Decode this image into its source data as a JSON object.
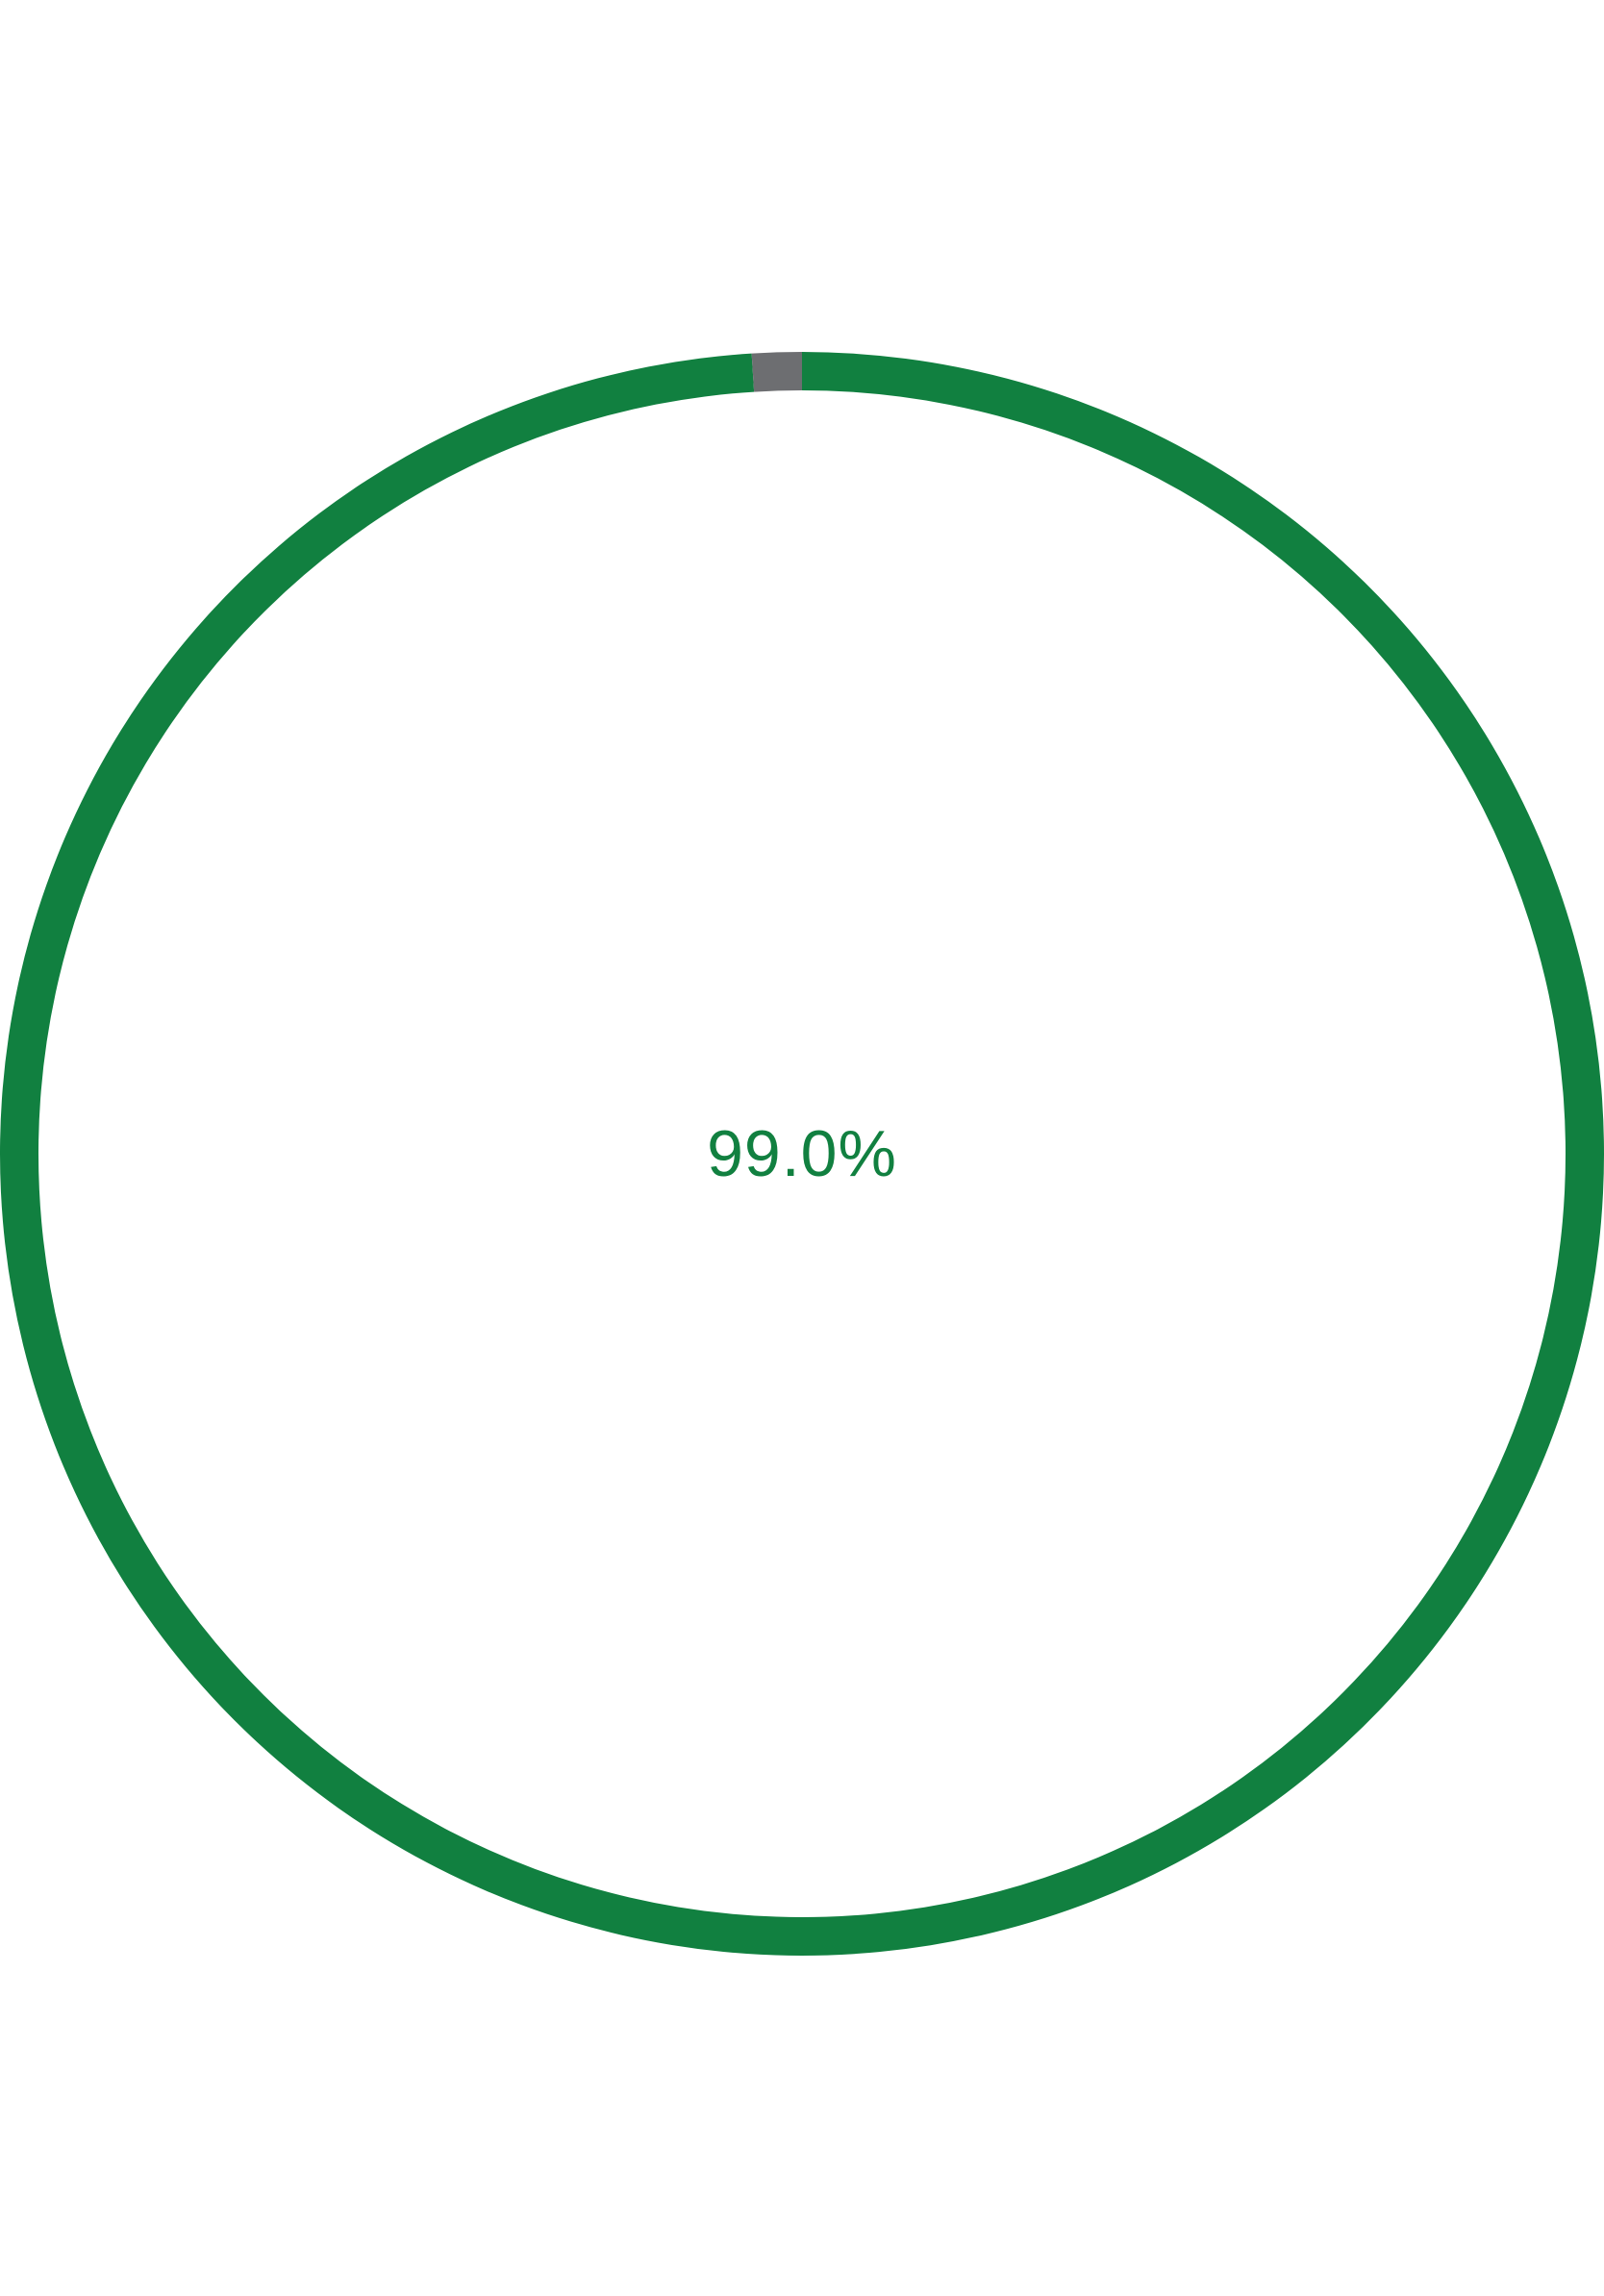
{
  "chart_data": {
    "type": "pie",
    "variant": "donut-ring",
    "slices": [
      {
        "value": 99.0,
        "color": "#118040"
      },
      {
        "value": 1.0,
        "color": "#6d6e71"
      }
    ],
    "center_label": "99.0%",
    "center_label_color": "#118040"
  }
}
